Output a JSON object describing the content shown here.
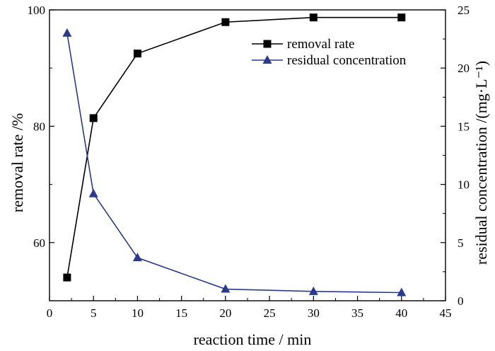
{
  "chart_data": {
    "type": "line",
    "title": "",
    "xlabel": "reaction time / min",
    "ylabel_left": "removal rate /%",
    "ylabel_right": "residual concentration /(mg·L⁻¹)",
    "xlim": [
      0,
      45
    ],
    "ylim_left": [
      50,
      100
    ],
    "ylim_right": [
      0,
      25
    ],
    "x_ticks": [
      0,
      5,
      10,
      15,
      20,
      25,
      30,
      35,
      40,
      45
    ],
    "y_left_ticks": [
      60,
      80,
      100
    ],
    "y_right_ticks": [
      0,
      5,
      10,
      15,
      20,
      25
    ],
    "grid": false,
    "legend_position": "top-right",
    "series": [
      {
        "name": "removal rate",
        "axis": "left",
        "marker": "square",
        "color": "#000000",
        "x": [
          2,
          5,
          10,
          20,
          30,
          40
        ],
        "values": [
          54.0,
          81.4,
          92.5,
          97.9,
          98.7,
          98.7
        ]
      },
      {
        "name": "residual concentration",
        "axis": "right",
        "marker": "triangle",
        "color": "#2b3a8c",
        "x": [
          2,
          5,
          10,
          20,
          30,
          40
        ],
        "values": [
          23.0,
          9.2,
          3.7,
          1.0,
          0.8,
          0.7
        ]
      }
    ]
  }
}
